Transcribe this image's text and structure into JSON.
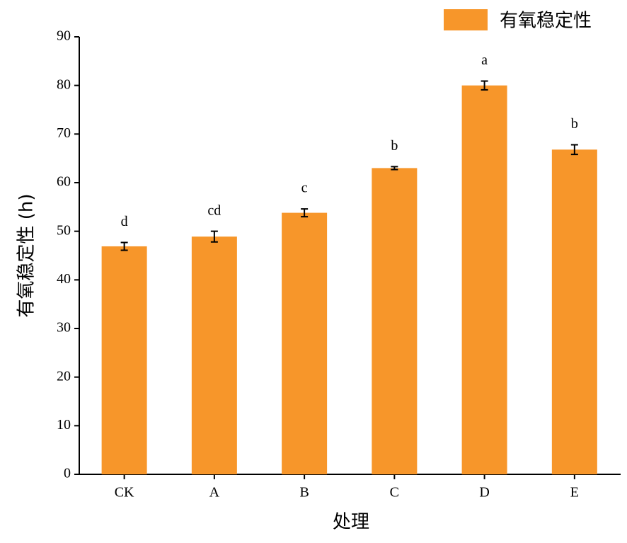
{
  "chart_data": {
    "type": "bar",
    "xlabel": "处理",
    "ylabel": "有氧稳定性 (h)",
    "categories": [
      "CK",
      "A",
      "B",
      "C",
      "D",
      "E"
    ],
    "series": [
      {
        "name": "有氧稳定性",
        "color": "#f7962a",
        "values": [
          46.9,
          48.9,
          53.8,
          63.0,
          80.0,
          66.8
        ],
        "errors": [
          0.8,
          1.1,
          0.8,
          0.3,
          0.9,
          1.0
        ],
        "labels": [
          "d",
          "cd",
          "c",
          "b",
          "a",
          "b"
        ]
      }
    ],
    "ylim": [
      0,
      90
    ],
    "yticks": [
      0,
      10,
      20,
      30,
      40,
      50,
      60,
      70,
      80,
      90
    ],
    "grid": false,
    "legend": "upper right"
  }
}
